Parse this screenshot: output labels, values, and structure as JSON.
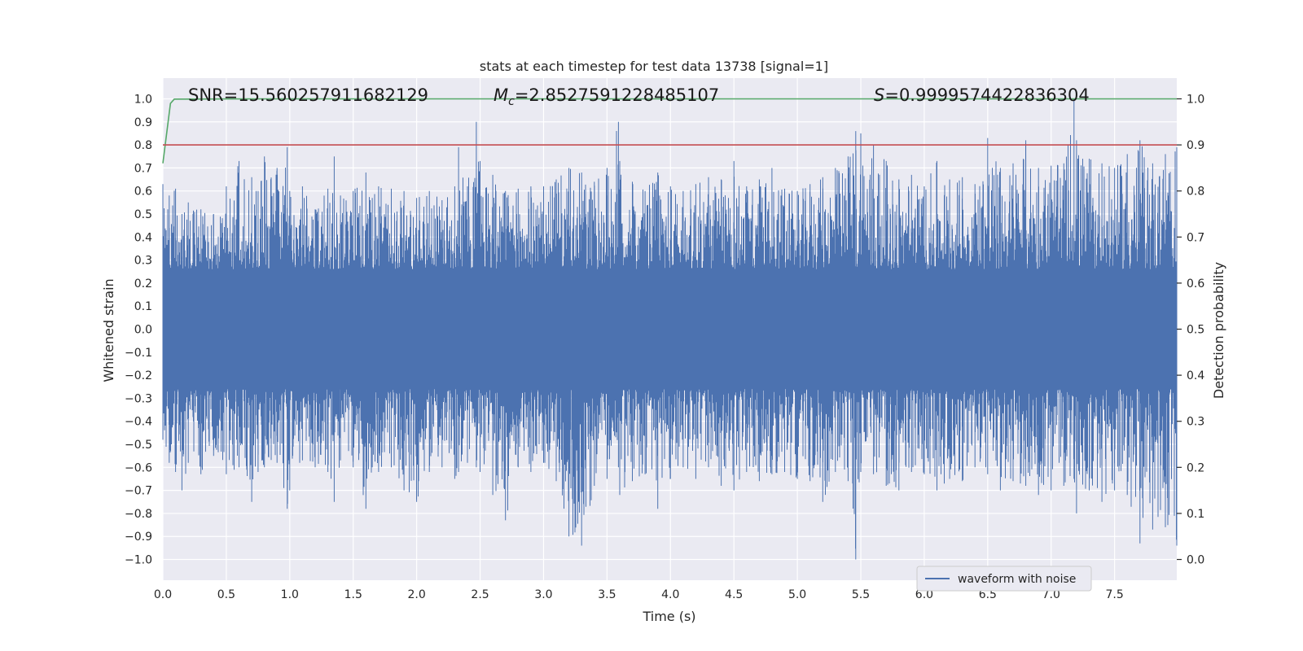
{
  "chart_data": {
    "type": "line",
    "title": "stats at each timestep for test data 13738 [signal=1]",
    "xlabel": "Time (s)",
    "ylabel_left": "Whitened strain",
    "ylabel_right": "Detection probability",
    "xlim": [
      0,
      7.99
    ],
    "ylim_left": [
      -1.09,
      1.09
    ],
    "ylim_right": [
      -0.045,
      1.045
    ],
    "x_ticks": [
      "0.0",
      "0.5",
      "1.0",
      "1.5",
      "2.0",
      "2.5",
      "3.0",
      "3.5",
      "4.0",
      "4.5",
      "5.0",
      "5.5",
      "6.0",
      "6.5",
      "7.0",
      "7.5"
    ],
    "x_tick_values": [
      0,
      0.5,
      1,
      1.5,
      2,
      2.5,
      3,
      3.5,
      4,
      4.5,
      5,
      5.5,
      6,
      6.5,
      7,
      7.5
    ],
    "y_ticks_left": [
      "1.0",
      "0.9",
      "0.8",
      "0.7",
      "0.6",
      "0.5",
      "0.4",
      "0.3",
      "0.2",
      "0.1",
      "0.0",
      "−0.1",
      "−0.2",
      "−0.3",
      "−0.4",
      "−0.5",
      "−0.6",
      "−0.7",
      "−0.8",
      "−0.9",
      "−1.0"
    ],
    "y_tick_values_left": [
      1,
      0.9,
      0.8,
      0.7,
      0.6,
      0.5,
      0.4,
      0.3,
      0.2,
      0.1,
      0,
      -0.1,
      -0.2,
      -0.3,
      -0.4,
      -0.5,
      -0.6,
      -0.7,
      -0.8,
      -0.9,
      -1
    ],
    "y_ticks_right": [
      "1.0",
      "0.9",
      "0.8",
      "0.7",
      "0.6",
      "0.5",
      "0.4",
      "0.3",
      "0.2",
      "0.1",
      "0.0"
    ],
    "y_tick_values_right": [
      1,
      0.9,
      0.8,
      0.7,
      0.6,
      0.5,
      0.4,
      0.3,
      0.2,
      0.1,
      0
    ],
    "grid": true,
    "legend_position": "lower-right",
    "annotations": {
      "snr": "SNR=15.560257911682129",
      "mc_symbol": "M",
      "mc_subscript": "c",
      "mc_value": "=2.8527591228485107",
      "s_symbol": "S",
      "s_value": "=0.9999574422836304"
    },
    "series": [
      {
        "name": "waveform with noise",
        "color": "#4c72b0",
        "axis": "left",
        "envelope_x": [
          0,
          0.05,
          0.1,
          0.15,
          0.2,
          0.3,
          0.4,
          0.5,
          0.6,
          0.7,
          0.75,
          0.8,
          0.9,
          0.98,
          1.0,
          1.1,
          1.2,
          1.3,
          1.35,
          1.4,
          1.5,
          1.6,
          1.65,
          1.7,
          1.8,
          1.9,
          2.0,
          2.1,
          2.2,
          2.3,
          2.33,
          2.4,
          2.47,
          2.5,
          2.6,
          2.7,
          2.8,
          2.9,
          3.0,
          3.1,
          3.2,
          3.3,
          3.4,
          3.5,
          3.59,
          3.6,
          3.7,
          3.8,
          3.9,
          4.0,
          4.1,
          4.2,
          4.3,
          4.4,
          4.5,
          4.6,
          4.7,
          4.8,
          4.9,
          5.0,
          5.1,
          5.2,
          5.3,
          5.4,
          5.46,
          5.5,
          5.6,
          5.7,
          5.8,
          5.9,
          6.0,
          6.1,
          6.2,
          6.3,
          6.4,
          6.5,
          6.6,
          6.7,
          6.8,
          6.9,
          7.0,
          7.1,
          7.18,
          7.2,
          7.3,
          7.4,
          7.5,
          7.6,
          7.7,
          7.8,
          7.9,
          7.99
        ],
        "envelope_max": [
          0.63,
          0.58,
          0.61,
          0.5,
          0.55,
          0.52,
          0.5,
          0.62,
          0.73,
          0.66,
          0.6,
          0.75,
          0.7,
          0.79,
          0.6,
          0.62,
          0.52,
          0.61,
          0.75,
          0.58,
          0.6,
          0.68,
          0.57,
          0.62,
          0.61,
          0.6,
          0.57,
          0.6,
          0.56,
          0.62,
          0.79,
          0.62,
          0.9,
          0.73,
          0.67,
          0.6,
          0.61,
          0.62,
          0.62,
          0.65,
          0.7,
          0.68,
          0.64,
          0.7,
          0.9,
          0.73,
          0.64,
          0.6,
          0.68,
          0.62,
          0.6,
          0.63,
          0.66,
          0.65,
          0.73,
          0.62,
          0.65,
          0.7,
          0.61,
          0.6,
          0.63,
          0.66,
          0.7,
          0.75,
          0.86,
          0.85,
          0.8,
          0.73,
          0.65,
          0.67,
          0.62,
          0.73,
          0.65,
          0.66,
          0.63,
          0.83,
          0.7,
          0.72,
          0.82,
          0.7,
          0.71,
          0.72,
          1.0,
          0.82,
          0.74,
          0.72,
          0.7,
          0.76,
          0.82,
          0.72,
          0.76,
          0.79
        ],
        "envelope_min": [
          -0.48,
          -0.58,
          -0.62,
          -0.7,
          -0.58,
          -0.63,
          -0.55,
          -0.63,
          -0.6,
          -0.75,
          -0.62,
          -0.6,
          -0.58,
          -0.78,
          -0.7,
          -0.57,
          -0.6,
          -0.62,
          -0.75,
          -0.57,
          -0.6,
          -0.78,
          -0.6,
          -0.62,
          -0.6,
          -0.7,
          -0.75,
          -0.62,
          -0.6,
          -0.65,
          -0.62,
          -0.58,
          -0.6,
          -0.62,
          -0.72,
          -0.83,
          -0.6,
          -0.62,
          -0.58,
          -0.66,
          -0.9,
          -0.94,
          -0.68,
          -0.65,
          -0.6,
          -0.72,
          -0.66,
          -0.63,
          -0.78,
          -0.65,
          -0.6,
          -0.65,
          -0.6,
          -0.68,
          -0.7,
          -0.62,
          -0.66,
          -0.63,
          -0.62,
          -0.65,
          -0.66,
          -0.75,
          -0.62,
          -0.66,
          -1.0,
          -0.62,
          -0.63,
          -0.68,
          -0.7,
          -0.62,
          -0.63,
          -0.7,
          -0.65,
          -0.66,
          -0.6,
          -0.63,
          -0.7,
          -0.66,
          -0.68,
          -0.72,
          -0.7,
          -0.68,
          -0.65,
          -0.8,
          -0.7,
          -0.75,
          -0.7,
          -0.72,
          -0.93,
          -0.87,
          -0.86,
          -0.94
        ]
      },
      {
        "name": "",
        "color": "#55a868",
        "axis": "right",
        "x": [
          0,
          0.06,
          0.09,
          0.5,
          1,
          2,
          3,
          4,
          5,
          6,
          7,
          7.99
        ],
        "values": [
          0.86,
          0.99,
          0.9995,
          0.9998,
          0.9999,
          0.9999,
          0.9999,
          0.9999,
          0.9999,
          0.9999,
          0.9999,
          0.9999
        ]
      },
      {
        "name": "",
        "color": "#c44e52",
        "axis": "right",
        "x": [
          0,
          7.99
        ],
        "values": [
          0.9,
          0.9
        ]
      }
    ]
  }
}
